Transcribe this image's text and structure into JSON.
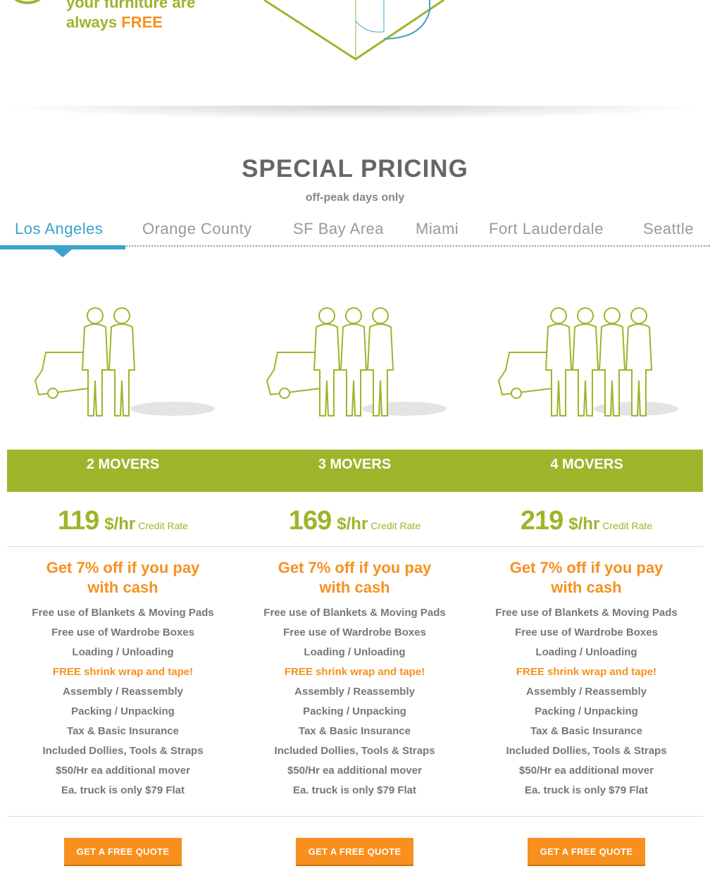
{
  "top": {
    "line1": "your furniture are",
    "line2_prefix": "always ",
    "line2_free": "FREE"
  },
  "section": {
    "title": "SPECIAL PRICING",
    "subtitle": "off-peak days only"
  },
  "tabs": [
    {
      "label": "Los Angeles",
      "active": true
    },
    {
      "label": "Orange County"
    },
    {
      "label": "SF Bay Area"
    },
    {
      "label": "Miami"
    },
    {
      "label": "Fort Lauderdale"
    },
    {
      "label": "Seattle"
    }
  ],
  "colors": {
    "green": "#9db52a",
    "orange": "#f7901e",
    "blue": "#3aa3cc"
  },
  "plans": [
    {
      "title": "2 MOVERS",
      "movers": 2,
      "price": "119",
      "unit": "$/hr",
      "rate_label": "Credit Rate",
      "cash": "Get 7% off if you pay with cash",
      "features": [
        "Free use of Blankets & Moving Pads",
        "Free use of Wardrobe Boxes",
        "Loading / Unloading",
        "FREE shrink wrap and tape!",
        "Assembly / Reassembly",
        "Packing / Unpacking",
        "Tax & Basic Insurance",
        "Included Dollies, Tools & Straps",
        "$50/Hr ea additional mover",
        "Ea. truck is only $79 Flat"
      ],
      "cta": "GET A FREE QUOTE"
    },
    {
      "title": "3 MOVERS",
      "movers": 3,
      "price": "169",
      "unit": "$/hr",
      "rate_label": "Credit Rate",
      "cash": "Get 7% off if you pay with cash",
      "features": [
        "Free use of Blankets & Moving Pads",
        "Free use of Wardrobe Boxes",
        "Loading / Unloading",
        "FREE shrink wrap and tape!",
        "Assembly / Reassembly",
        "Packing / Unpacking",
        "Tax & Basic Insurance",
        "Included Dollies, Tools & Straps",
        "$50/Hr ea additional mover",
        "Ea. truck is only $79 Flat"
      ],
      "cta": "GET A FREE QUOTE"
    },
    {
      "title": "4 MOVERS",
      "movers": 4,
      "price": "219",
      "unit": "$/hr",
      "rate_label": "Credit Rate",
      "cash": "Get 7% off if you pay with cash",
      "features": [
        "Free use of Blankets & Moving Pads",
        "Free use of Wardrobe Boxes",
        "Loading / Unloading",
        "FREE shrink wrap and tape!",
        "Assembly / Reassembly",
        "Packing / Unpacking",
        "Tax & Basic Insurance",
        "Included Dollies, Tools & Straps",
        "$50/Hr ea additional mover",
        "Ea. truck is only $79 Flat"
      ],
      "cta": "GET A FREE QUOTE"
    }
  ]
}
